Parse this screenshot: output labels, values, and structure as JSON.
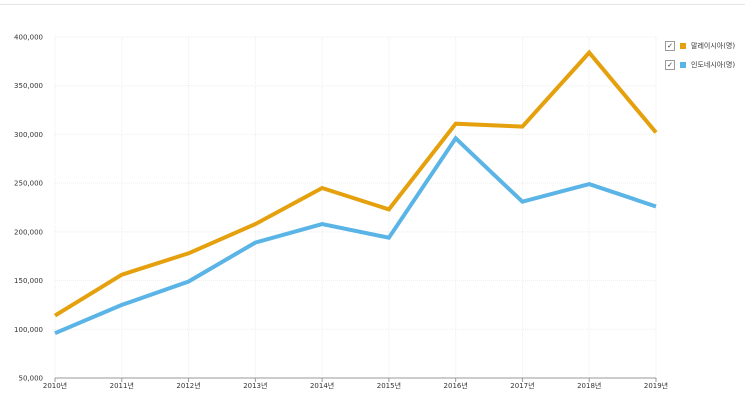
{
  "chart_data": {
    "type": "line",
    "categories": [
      "2010년",
      "2011년",
      "2012년",
      "2013년",
      "2014년",
      "2015년",
      "2016년",
      "2017년",
      "2018년",
      "2019년"
    ],
    "series": [
      {
        "name": "말레이시아(명)",
        "color": "#e5a00d",
        "values": [
          114000,
          156000,
          178000,
          208000,
          245000,
          223000,
          311000,
          308000,
          384000,
          302000
        ]
      },
      {
        "name": "인도네시아(명)",
        "color": "#5ab4e5",
        "values": [
          96000,
          125000,
          149000,
          189000,
          208000,
          194000,
          296000,
          231000,
          249000,
          226000
        ]
      }
    ],
    "y_ticks": [
      "400,000",
      "350,000",
      "300,000",
      "250,000",
      "200,000",
      "150,000",
      "100,000",
      "50,000"
    ],
    "ylim": [
      50000,
      400000
    ],
    "grid": true,
    "legend_position": "top-right"
  },
  "legend": {
    "check_glyph": "✓",
    "items": [
      {
        "label": "말레이시아(명)",
        "color": "#e5a00d",
        "checked": true
      },
      {
        "label": "인도네시아(명)",
        "color": "#5ab4e5",
        "checked": true
      }
    ]
  }
}
